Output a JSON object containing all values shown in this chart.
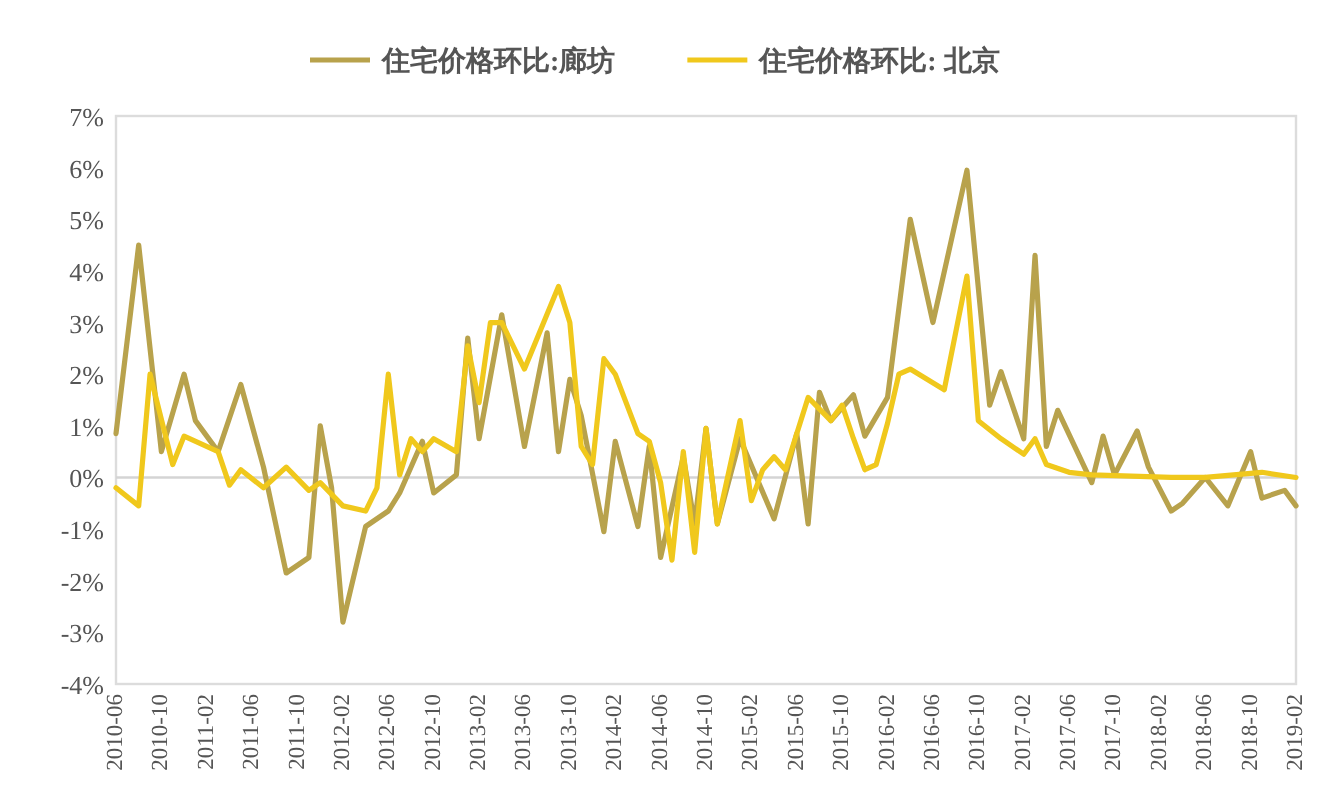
{
  "chart_data": {
    "type": "line",
    "legend": "top",
    "ylim": [
      -4,
      7
    ],
    "yticks": [
      {
        "value": -4,
        "label": "-4%"
      },
      {
        "value": -3,
        "label": "-3%"
      },
      {
        "value": -2,
        "label": "-2%"
      },
      {
        "value": -1,
        "label": "-1%"
      },
      {
        "value": 0,
        "label": "0%"
      },
      {
        "value": 1,
        "label": "1%"
      },
      {
        "value": 2,
        "label": "2%"
      },
      {
        "value": 3,
        "label": "3%"
      },
      {
        "value": 4,
        "label": "4%"
      },
      {
        "value": 5,
        "label": "5%"
      },
      {
        "value": 6,
        "label": "6%"
      },
      {
        "value": 7,
        "label": "7%"
      }
    ],
    "xlim": [
      "2010-06",
      "2019-02"
    ],
    "xticks": [
      "2010-06",
      "2010-10",
      "2011-02",
      "2011-06",
      "2011-10",
      "2012-02",
      "2012-06",
      "2012-10",
      "2013-02",
      "2013-06",
      "2013-10",
      "2014-02",
      "2014-06",
      "2014-10",
      "2015-02",
      "2015-06",
      "2015-10",
      "2016-02",
      "2016-06",
      "2016-10",
      "2017-02",
      "2017-06",
      "2017-10",
      "2018-02",
      "2018-06",
      "2018-10",
      "2019-02"
    ],
    "series": [
      {
        "name": "住宅价格环比:廊坊",
        "color": "#b8a24c",
        "x": [
          "2010-06",
          "2010-08",
          "2010-10",
          "2010-12",
          "2011-01",
          "2011-03",
          "2011-05",
          "2011-07",
          "2011-09",
          "2011-11",
          "2011-12",
          "2012-01",
          "2012-02",
          "2012-04",
          "2012-06",
          "2012-07",
          "2012-09",
          "2012-10",
          "2012-12",
          "2013-01",
          "2013-02",
          "2013-04",
          "2013-06",
          "2013-08",
          "2013-09",
          "2013-10",
          "2013-11",
          "2014-01",
          "2014-02",
          "2014-04",
          "2014-05",
          "2014-06",
          "2014-08",
          "2014-09",
          "2014-10",
          "2014-11",
          "2015-01",
          "2015-04",
          "2015-06",
          "2015-07",
          "2015-08",
          "2015-09",
          "2015-11",
          "2015-12",
          "2016-02",
          "2016-04",
          "2016-06",
          "2016-09",
          "2016-11",
          "2016-12",
          "2017-02",
          "2017-03",
          "2017-04",
          "2017-05",
          "2017-08",
          "2017-09",
          "2017-10",
          "2017-12",
          "2018-01",
          "2018-03",
          "2018-04",
          "2018-06",
          "2018-08",
          "2018-10",
          "2018-11",
          "2019-01",
          "2019-02"
        ],
        "values": [
          0.85,
          4.5,
          0.5,
          2.0,
          1.1,
          0.5,
          1.8,
          0.2,
          -1.85,
          -1.55,
          1.0,
          -0.2,
          -2.8,
          -0.95,
          -0.65,
          -0.3,
          0.7,
          -0.3,
          0.05,
          2.7,
          0.75,
          3.15,
          0.6,
          2.8,
          0.5,
          1.9,
          1.2,
          -1.05,
          0.7,
          -0.95,
          0.6,
          -1.55,
          0.4,
          -0.9,
          0.95,
          -0.9,
          0.75,
          -0.8,
          0.85,
          -0.9,
          1.65,
          1.1,
          1.6,
          0.8,
          1.55,
          5.0,
          3.0,
          5.95,
          1.4,
          2.05,
          0.75,
          4.3,
          0.6,
          1.3,
          -0.1,
          0.8,
          0.05,
          0.9,
          0.2,
          -0.65,
          -0.5,
          0.0,
          -0.55,
          0.5,
          -0.4,
          -0.25,
          -0.55
        ]
      },
      {
        "name": "住宅价格环比: 北京",
        "color": "#f0c81c",
        "x": [
          "2010-06",
          "2010-08",
          "2010-09",
          "2010-11",
          "2010-12",
          "2011-03",
          "2011-04",
          "2011-05",
          "2011-07",
          "2011-09",
          "2011-11",
          "2011-12",
          "2012-02",
          "2012-04",
          "2012-05",
          "2012-06",
          "2012-07",
          "2012-08",
          "2012-09",
          "2012-10",
          "2012-12",
          "2013-01",
          "2013-02",
          "2013-03",
          "2013-04",
          "2013-06",
          "2013-09",
          "2013-10",
          "2013-11",
          "2013-12",
          "2014-01",
          "2014-02",
          "2014-04",
          "2014-05",
          "2014-06",
          "2014-07",
          "2014-08",
          "2014-09",
          "2014-10",
          "2014-11",
          "2015-01",
          "2015-02",
          "2015-03",
          "2015-04",
          "2015-05",
          "2015-07",
          "2015-09",
          "2015-10",
          "2015-11",
          "2015-12",
          "2016-01",
          "2016-02",
          "2016-03",
          "2016-04",
          "2016-07",
          "2016-09",
          "2016-10",
          "2016-12",
          "2017-02",
          "2017-03",
          "2017-04",
          "2017-06",
          "2017-08",
          "2018-03",
          "2018-06",
          "2018-11",
          "2019-02"
        ],
        "values": [
          -0.2,
          -0.55,
          2.0,
          0.25,
          0.8,
          0.5,
          -0.15,
          0.15,
          -0.2,
          0.2,
          -0.25,
          -0.1,
          -0.55,
          -0.65,
          -0.2,
          2.0,
          0.05,
          0.75,
          0.5,
          0.75,
          0.5,
          2.55,
          1.45,
          3.0,
          3.0,
          2.1,
          3.7,
          3.0,
          0.6,
          0.25,
          2.3,
          2.0,
          0.85,
          0.7,
          -0.1,
          -1.6,
          0.5,
          -1.45,
          0.95,
          -0.9,
          1.1,
          -0.45,
          0.15,
          0.4,
          0.15,
          1.55,
          1.1,
          1.4,
          0.75,
          0.15,
          0.25,
          1.05,
          2.0,
          2.1,
          1.7,
          3.9,
          1.1,
          0.75,
          0.45,
          0.75,
          0.25,
          0.1,
          0.05,
          0.0,
          0.0,
          0.1,
          0.0
        ]
      }
    ]
  }
}
